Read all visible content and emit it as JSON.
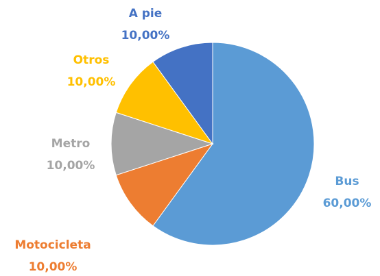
{
  "chart_data": {
    "type": "pie",
    "categories": [
      "Bus",
      "Motocicleta",
      "Metro",
      "Otros",
      "A pie"
    ],
    "values": [
      60,
      10,
      10,
      10,
      10
    ],
    "value_labels": [
      "60,00%",
      "10,00%",
      "10,00%",
      "10,00%",
      "10,00%"
    ],
    "colors": [
      "#5b9bd5",
      "#ed7d31",
      "#a5a5a5",
      "#ffc000",
      "#4472c4"
    ]
  }
}
